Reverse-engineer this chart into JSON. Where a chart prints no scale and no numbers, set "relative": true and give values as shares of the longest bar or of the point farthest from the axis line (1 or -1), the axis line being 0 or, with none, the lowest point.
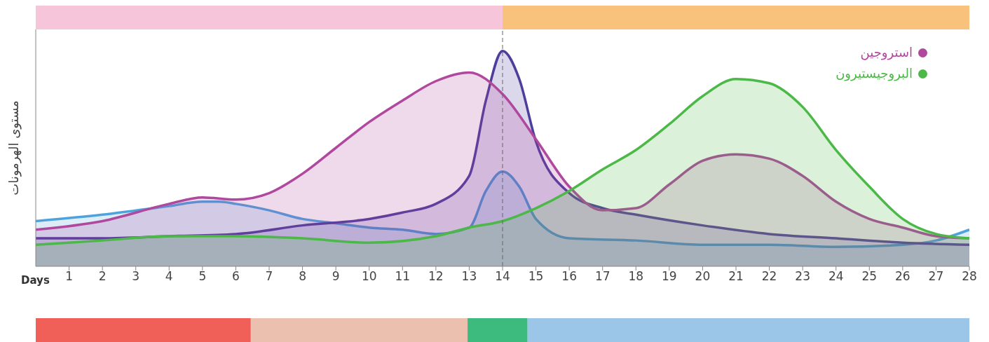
{
  "chart_data": {
    "type": "area",
    "relative": true,
    "xlabel": "Days",
    "ylabel": "مستوى الهرمونات",
    "xlim": [
      0,
      28
    ],
    "xticks": [
      1,
      2,
      3,
      4,
      5,
      6,
      7,
      8,
      9,
      10,
      11,
      12,
      13,
      14,
      15,
      16,
      17,
      18,
      19,
      20,
      21,
      22,
      23,
      24,
      25,
      26,
      27,
      28
    ],
    "legend": "top right",
    "grid": false,
    "marker": "none",
    "line_style": "solid",
    "series": [
      {
        "color": "#4ea3dd",
        "x": [
          0,
          2,
          4,
          5,
          5.5,
          6,
          7,
          8,
          9,
          10,
          11,
          12,
          13,
          13.5,
          14,
          14.5,
          15,
          16,
          18,
          20,
          22,
          24,
          26,
          27,
          28
        ],
        "values": [
          0.21,
          0.24,
          0.28,
          0.3,
          0.3,
          0.29,
          0.26,
          0.22,
          0.2,
          0.18,
          0.17,
          0.15,
          0.18,
          0.35,
          0.44,
          0.37,
          0.22,
          0.13,
          0.12,
          0.1,
          0.1,
          0.09,
          0.1,
          0.12,
          0.17
        ]
      },
      {
        "color": "#4e3d9b",
        "x": [
          0,
          2,
          4,
          6,
          8,
          10,
          11,
          12,
          13,
          13.5,
          14,
          14.5,
          15,
          16,
          17,
          18,
          20,
          22,
          24,
          26,
          28
        ],
        "values": [
          0.13,
          0.13,
          0.14,
          0.15,
          0.19,
          0.22,
          0.25,
          0.29,
          0.42,
          0.77,
          1,
          0.87,
          0.58,
          0.34,
          0.27,
          0.24,
          0.19,
          0.15,
          0.13,
          0.11,
          0.1
        ]
      },
      {
        "name": "استروجين",
        "color": "#b0489e",
        "x": [
          0,
          2,
          4,
          5,
          6,
          7,
          8,
          9,
          10,
          11,
          12,
          13,
          14,
          15,
          16,
          17,
          18,
          19,
          20,
          21,
          22,
          23,
          24,
          25,
          26,
          27,
          28
        ],
        "values": [
          0.17,
          0.21,
          0.29,
          0.32,
          0.31,
          0.34,
          0.43,
          0.55,
          0.67,
          0.77,
          0.86,
          0.9,
          0.8,
          0.59,
          0.37,
          0.26,
          0.27,
          0.38,
          0.49,
          0.52,
          0.5,
          0.42,
          0.3,
          0.22,
          0.18,
          0.14,
          0.13
        ]
      },
      {
        "name": "البروجيستيرون",
        "color": "#4cb848",
        "x": [
          0,
          2,
          4,
          6,
          8,
          10,
          12,
          13,
          14,
          15,
          16,
          17,
          18,
          19,
          20,
          21,
          22,
          23,
          24,
          25,
          26,
          27,
          28
        ],
        "values": [
          0.1,
          0.12,
          0.14,
          0.14,
          0.13,
          0.11,
          0.14,
          0.18,
          0.21,
          0.27,
          0.35,
          0.45,
          0.54,
          0.66,
          0.79,
          0.87,
          0.85,
          0.74,
          0.54,
          0.37,
          0.22,
          0.15,
          0.13
        ]
      }
    ],
    "ref_lines": [
      {
        "axis": "x",
        "value": 14,
        "line_style": "dashed",
        "color": "#666666"
      }
    ]
  }
}
